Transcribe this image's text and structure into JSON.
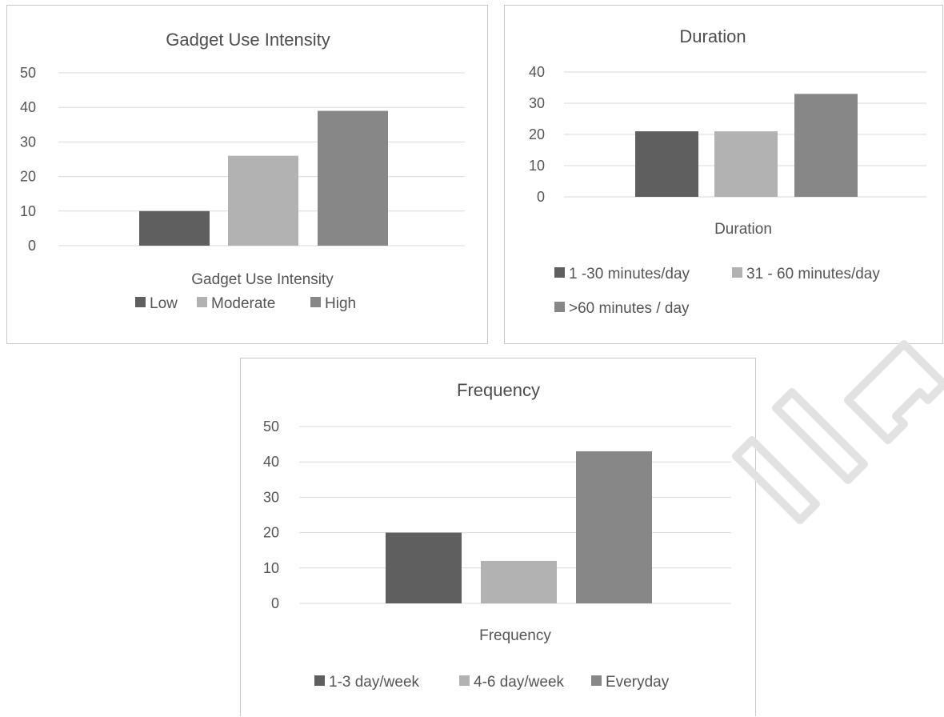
{
  "charts": [
    {
      "type": "bar",
      "title": "Gadget Use Intensity",
      "xlabel": "Gadget Use Intensity",
      "ylim": [
        0,
        50
      ],
      "yticks": [
        0,
        10,
        20,
        30,
        40,
        50
      ],
      "categories": [
        "Gadget Use Intensity"
      ],
      "series": [
        {
          "name": "Low",
          "values": [
            10
          ],
          "color": "#5f5f5f"
        },
        {
          "name": "Moderate",
          "values": [
            26
          ],
          "color": "#b2b2b2"
        },
        {
          "name": "High",
          "values": [
            39
          ],
          "color": "#878787"
        }
      ],
      "legend_position": "bottom"
    },
    {
      "type": "bar",
      "title": "Duration",
      "xlabel": "Duration",
      "ylim": [
        0,
        40
      ],
      "yticks": [
        0,
        10,
        20,
        30,
        40
      ],
      "categories": [
        "Duration"
      ],
      "series": [
        {
          "name": "1 -30 minutes/day",
          "values": [
            21
          ],
          "color": "#5f5f5f"
        },
        {
          "name": "31 - 60 minutes/day",
          "values": [
            21
          ],
          "color": "#b2b2b2"
        },
        {
          "name": ">60 minutes / day",
          "values": [
            33
          ],
          "color": "#878787"
        }
      ],
      "legend_position": "bottom"
    },
    {
      "type": "bar",
      "title": "Frequency",
      "xlabel": "Frequency",
      "ylim": [
        0,
        50
      ],
      "yticks": [
        0,
        10,
        20,
        30,
        40,
        50
      ],
      "categories": [
        "Frequency"
      ],
      "series": [
        {
          "name": "1-3 day/week",
          "values": [
            20
          ],
          "color": "#5f5f5f"
        },
        {
          "name": "4-6 day/week",
          "values": [
            12
          ],
          "color": "#b2b2b2"
        },
        {
          "name": "Everyday",
          "values": [
            43
          ],
          "color": "#878787"
        }
      ],
      "legend_position": "bottom"
    }
  ],
  "chart_data": [
    {
      "type": "bar",
      "title": "Gadget Use Intensity",
      "xlabel": "Gadget Use Intensity",
      "ylabel": "",
      "ylim": [
        0,
        50
      ],
      "categories": [
        "Gadget Use Intensity"
      ],
      "series": [
        {
          "name": "Low",
          "values": [
            10
          ]
        },
        {
          "name": "Moderate",
          "values": [
            26
          ]
        },
        {
          "name": "High",
          "values": [
            39
          ]
        }
      ],
      "grid": true,
      "legend": "bottom"
    },
    {
      "type": "bar",
      "title": "Duration",
      "xlabel": "Duration",
      "ylabel": "",
      "ylim": [
        0,
        40
      ],
      "categories": [
        "Duration"
      ],
      "series": [
        {
          "name": "1 -30 minutes/day",
          "values": [
            21
          ]
        },
        {
          "name": "31 - 60 minutes/day",
          "values": [
            21
          ]
        },
        {
          "name": ">60 minutes / day",
          "values": [
            33
          ]
        }
      ],
      "grid": true,
      "legend": "bottom"
    },
    {
      "type": "bar",
      "title": "Frequency",
      "xlabel": "Frequency",
      "ylabel": "",
      "ylim": [
        0,
        50
      ],
      "categories": [
        "Frequency"
      ],
      "series": [
        {
          "name": "1-3 day/week",
          "values": [
            20
          ]
        },
        {
          "name": "4-6 day/week",
          "values": [
            12
          ]
        },
        {
          "name": "Everyday",
          "values": [
            43
          ]
        }
      ],
      "grid": true,
      "legend": "bottom"
    }
  ]
}
